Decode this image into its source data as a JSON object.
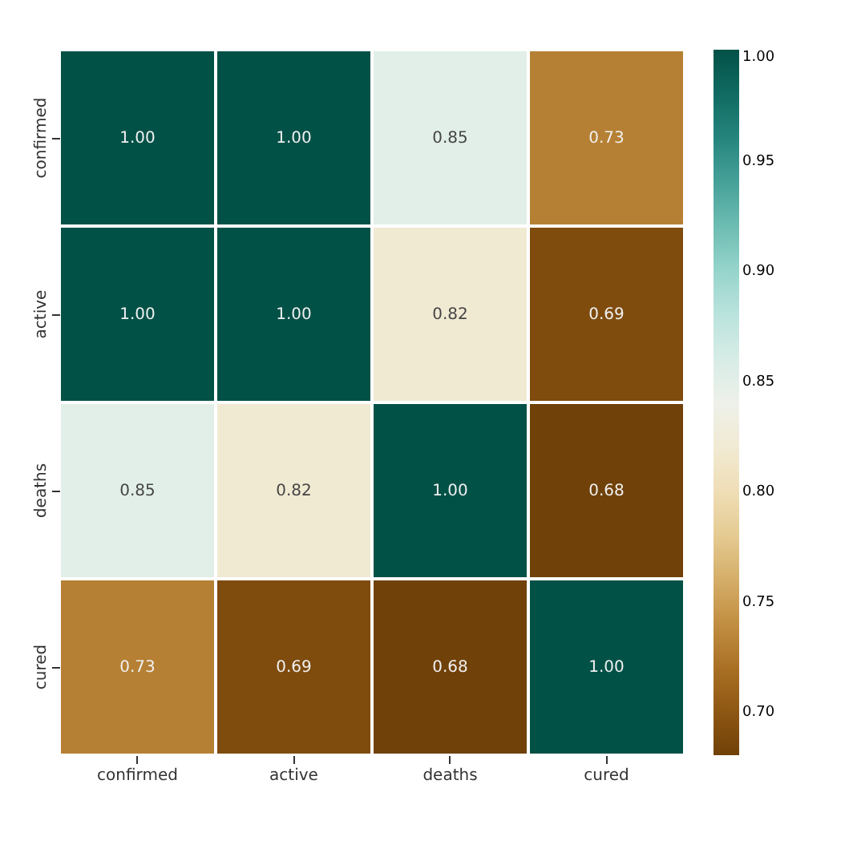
{
  "chart_data": {
    "type": "heatmap",
    "categories": [
      "confirmed",
      "active",
      "deaths",
      "cured"
    ],
    "y_categories": [
      "confirmed",
      "active",
      "deaths",
      "cured"
    ],
    "cells": [
      [
        1.0,
        1.0,
        0.85,
        0.73
      ],
      [
        1.0,
        1.0,
        0.82,
        0.69
      ],
      [
        0.85,
        0.82,
        1.0,
        0.68
      ],
      [
        0.73,
        0.69,
        0.68,
        1.0
      ]
    ],
    "cell_labels": [
      [
        "1.00",
        "1.00",
        "0.85",
        "0.73"
      ],
      [
        "1.00",
        "1.00",
        "0.82",
        "0.69"
      ],
      [
        "0.85",
        "0.82",
        "1.00",
        "0.68"
      ],
      [
        "0.73",
        "0.69",
        "0.68",
        "1.00"
      ]
    ],
    "clim": [
      0.68,
      1.0
    ],
    "cticks": [
      {
        "value": 0.7,
        "label": "0.70"
      },
      {
        "value": 0.75,
        "label": "0.75"
      },
      {
        "value": 0.8,
        "label": "0.80"
      },
      {
        "value": 0.85,
        "label": "0.85"
      },
      {
        "value": 0.9,
        "label": "0.90"
      },
      {
        "value": 0.95,
        "label": "0.95"
      },
      {
        "value": 1.0,
        "label": "1.00"
      }
    ]
  }
}
